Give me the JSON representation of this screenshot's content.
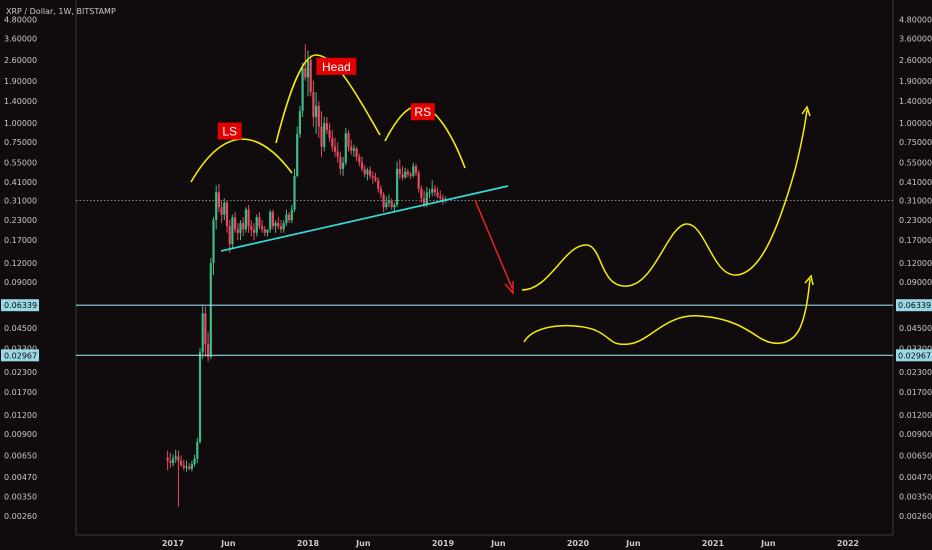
{
  "chart_data": {
    "type": "candlestick",
    "title": "XRP / Dollar, 1W, BITSTAMP",
    "y_scale": "log",
    "ylim": [
      0.0021,
      4.8
    ],
    "y_ticks": [
      "4.80000",
      "3.60000",
      "2.60000",
      "1.90000",
      "1.40000",
      "1.00000",
      "0.75000",
      "0.55000",
      "0.41000",
      "0.31000",
      "0.23000",
      "0.17000",
      "0.12000",
      "0.09000",
      "0.06339",
      "0.04500",
      "0.03300",
      "0.02967",
      "0.02300",
      "0.01700",
      "0.01200",
      "0.00900",
      "0.00650",
      "0.00470",
      "0.00350",
      "0.00260"
    ],
    "x_ticks": [
      {
        "label": "2017",
        "t": 2017.0
      },
      {
        "label": "Jun",
        "t": 2017.41
      },
      {
        "label": "2018",
        "t": 2018.0
      },
      {
        "label": "Jun",
        "t": 2018.41
      },
      {
        "label": "2019",
        "t": 2019.0
      },
      {
        "label": "Jun",
        "t": 2019.41
      },
      {
        "label": "2020",
        "t": 2020.0
      },
      {
        "label": "Jun",
        "t": 2020.41
      },
      {
        "label": "2021",
        "t": 2021.0
      },
      {
        "label": "Jun",
        "t": 2021.41
      },
      {
        "label": "2022",
        "t": 2022.0
      }
    ],
    "current_price": 0.31,
    "levels": [
      {
        "value": 0.06339,
        "label": "0.06339"
      },
      {
        "value": 0.02967,
        "label": "0.02967"
      }
    ],
    "pattern_labels": [
      {
        "text": "LS",
        "t": 2017.42,
        "y": 0.88
      },
      {
        "text": "Head",
        "t": 2018.21,
        "y": 2.35
      },
      {
        "text": "RS",
        "t": 2018.85,
        "y": 1.18
      }
    ],
    "candles": [
      [
        2016.96,
        0.0063,
        0.007,
        0.0052,
        0.006
      ],
      [
        2016.98,
        0.006,
        0.0068,
        0.0054,
        0.0058
      ],
      [
        2017.0,
        0.0058,
        0.0066,
        0.0055,
        0.0062
      ],
      [
        2017.02,
        0.0062,
        0.0071,
        0.0058,
        0.0064
      ],
      [
        2017.04,
        0.0064,
        0.007,
        0.003,
        0.006
      ],
      [
        2017.06,
        0.006,
        0.0065,
        0.0055,
        0.0056
      ],
      [
        2017.08,
        0.0056,
        0.0061,
        0.0052,
        0.0054
      ],
      [
        2017.1,
        0.0054,
        0.006,
        0.0051,
        0.0055
      ],
      [
        2017.12,
        0.0055,
        0.0058,
        0.0052,
        0.0053
      ],
      [
        2017.14,
        0.0053,
        0.006,
        0.0051,
        0.0057
      ],
      [
        2017.16,
        0.0057,
        0.0066,
        0.0055,
        0.0062
      ],
      [
        2017.18,
        0.0062,
        0.0085,
        0.0058,
        0.008
      ],
      [
        2017.2,
        0.008,
        0.033,
        0.0078,
        0.031
      ],
      [
        2017.22,
        0.031,
        0.064,
        0.028,
        0.056
      ],
      [
        2017.24,
        0.056,
        0.062,
        0.029,
        0.035
      ],
      [
        2017.26,
        0.035,
        0.042,
        0.027,
        0.029
      ],
      [
        2017.28,
        0.029,
        0.13,
        0.028,
        0.12
      ],
      [
        2017.3,
        0.12,
        0.24,
        0.1,
        0.23
      ],
      [
        2017.32,
        0.23,
        0.39,
        0.2,
        0.35
      ],
      [
        2017.34,
        0.35,
        0.4,
        0.26,
        0.28
      ],
      [
        2017.36,
        0.28,
        0.31,
        0.22,
        0.25
      ],
      [
        2017.38,
        0.25,
        0.32,
        0.23,
        0.3
      ],
      [
        2017.4,
        0.3,
        0.31,
        0.19,
        0.21
      ],
      [
        2017.42,
        0.21,
        0.23,
        0.14,
        0.16
      ],
      [
        2017.44,
        0.16,
        0.25,
        0.15,
        0.24
      ],
      [
        2017.46,
        0.24,
        0.26,
        0.19,
        0.2
      ],
      [
        2017.48,
        0.2,
        0.22,
        0.17,
        0.19
      ],
      [
        2017.5,
        0.19,
        0.23,
        0.17,
        0.22
      ],
      [
        2017.52,
        0.22,
        0.24,
        0.18,
        0.2
      ],
      [
        2017.54,
        0.2,
        0.28,
        0.19,
        0.27
      ],
      [
        2017.56,
        0.27,
        0.29,
        0.19,
        0.21
      ],
      [
        2017.58,
        0.21,
        0.23,
        0.18,
        0.2
      ],
      [
        2017.6,
        0.2,
        0.22,
        0.17,
        0.19
      ],
      [
        2017.62,
        0.19,
        0.25,
        0.18,
        0.24
      ],
      [
        2017.64,
        0.24,
        0.26,
        0.2,
        0.21
      ],
      [
        2017.66,
        0.21,
        0.23,
        0.19,
        0.2
      ],
      [
        2017.68,
        0.2,
        0.21,
        0.18,
        0.19
      ],
      [
        2017.7,
        0.19,
        0.2,
        0.18,
        0.2
      ],
      [
        2017.72,
        0.2,
        0.27,
        0.19,
        0.26
      ],
      [
        2017.74,
        0.26,
        0.27,
        0.2,
        0.21
      ],
      [
        2017.76,
        0.21,
        0.23,
        0.19,
        0.22
      ],
      [
        2017.78,
        0.22,
        0.24,
        0.2,
        0.21
      ],
      [
        2017.8,
        0.21,
        0.23,
        0.19,
        0.2
      ],
      [
        2017.82,
        0.2,
        0.23,
        0.19,
        0.22
      ],
      [
        2017.84,
        0.22,
        0.27,
        0.21,
        0.25
      ],
      [
        2017.86,
        0.25,
        0.26,
        0.22,
        0.23
      ],
      [
        2017.88,
        0.23,
        0.29,
        0.22,
        0.27
      ],
      [
        2017.9,
        0.27,
        0.5,
        0.26,
        0.45
      ],
      [
        2017.92,
        0.45,
        0.95,
        0.44,
        0.85
      ],
      [
        2017.94,
        0.85,
        1.3,
        0.8,
        1.2
      ],
      [
        2017.96,
        1.2,
        2.5,
        1.1,
        2.3
      ],
      [
        2017.98,
        2.3,
        3.3,
        1.9,
        2.0
      ],
      [
        2018.0,
        2.0,
        3.0,
        1.5,
        2.6
      ],
      [
        2018.02,
        2.6,
        2.8,
        1.5,
        1.6
      ],
      [
        2018.04,
        1.6,
        1.9,
        0.95,
        1.1
      ],
      [
        2018.06,
        1.1,
        1.6,
        0.85,
        1.3
      ],
      [
        2018.08,
        1.3,
        1.4,
        0.8,
        0.95
      ],
      [
        2018.1,
        0.95,
        1.2,
        0.6,
        0.7
      ],
      [
        2018.12,
        0.7,
        1.1,
        0.65,
        1.0
      ],
      [
        2018.14,
        1.0,
        1.1,
        0.85,
        0.9
      ],
      [
        2018.16,
        0.9,
        1.0,
        0.75,
        0.8
      ],
      [
        2018.18,
        0.8,
        0.9,
        0.65,
        0.7
      ],
      [
        2018.2,
        0.7,
        0.8,
        0.6,
        0.65
      ],
      [
        2018.22,
        0.65,
        0.75,
        0.55,
        0.6
      ],
      [
        2018.24,
        0.6,
        0.65,
        0.46,
        0.5
      ],
      [
        2018.26,
        0.5,
        0.6,
        0.45,
        0.55
      ],
      [
        2018.28,
        0.55,
        0.93,
        0.53,
        0.86
      ],
      [
        2018.3,
        0.86,
        0.9,
        0.65,
        0.7
      ],
      [
        2018.32,
        0.7,
        0.78,
        0.62,
        0.66
      ],
      [
        2018.34,
        0.66,
        0.72,
        0.6,
        0.68
      ],
      [
        2018.36,
        0.68,
        0.7,
        0.56,
        0.6
      ],
      [
        2018.38,
        0.6,
        0.63,
        0.52,
        0.55
      ],
      [
        2018.4,
        0.55,
        0.6,
        0.48,
        0.5
      ],
      [
        2018.42,
        0.5,
        0.53,
        0.44,
        0.46
      ],
      [
        2018.44,
        0.46,
        0.51,
        0.42,
        0.49
      ],
      [
        2018.46,
        0.49,
        0.52,
        0.43,
        0.45
      ],
      [
        2018.48,
        0.45,
        0.48,
        0.4,
        0.44
      ],
      [
        2018.5,
        0.44,
        0.47,
        0.41,
        0.42
      ],
      [
        2018.52,
        0.42,
        0.44,
        0.35,
        0.37
      ],
      [
        2018.54,
        0.37,
        0.39,
        0.32,
        0.34
      ],
      [
        2018.56,
        0.34,
        0.35,
        0.26,
        0.28
      ],
      [
        2018.58,
        0.28,
        0.33,
        0.27,
        0.3
      ],
      [
        2018.6,
        0.3,
        0.34,
        0.28,
        0.31
      ],
      [
        2018.62,
        0.31,
        0.32,
        0.27,
        0.28
      ],
      [
        2018.64,
        0.28,
        0.3,
        0.26,
        0.29
      ],
      [
        2018.66,
        0.29,
        0.56,
        0.28,
        0.5
      ],
      [
        2018.68,
        0.5,
        0.58,
        0.43,
        0.46
      ],
      [
        2018.7,
        0.46,
        0.52,
        0.42,
        0.44
      ],
      [
        2018.72,
        0.44,
        0.51,
        0.43,
        0.48
      ],
      [
        2018.74,
        0.48,
        0.5,
        0.44,
        0.46
      ],
      [
        2018.76,
        0.46,
        0.48,
        0.43,
        0.45
      ],
      [
        2018.78,
        0.45,
        0.55,
        0.44,
        0.52
      ],
      [
        2018.8,
        0.52,
        0.54,
        0.45,
        0.47
      ],
      [
        2018.82,
        0.47,
        0.49,
        0.35,
        0.37
      ],
      [
        2018.84,
        0.37,
        0.39,
        0.3,
        0.32
      ],
      [
        2018.86,
        0.32,
        0.36,
        0.28,
        0.29
      ],
      [
        2018.88,
        0.29,
        0.38,
        0.28,
        0.35
      ],
      [
        2018.9,
        0.35,
        0.37,
        0.32,
        0.35
      ],
      [
        2018.92,
        0.35,
        0.42,
        0.33,
        0.37
      ],
      [
        2018.94,
        0.37,
        0.39,
        0.33,
        0.35
      ],
      [
        2018.96,
        0.35,
        0.38,
        0.32,
        0.33
      ],
      [
        2018.98,
        0.33,
        0.36,
        0.31,
        0.32
      ],
      [
        2019.0,
        0.32,
        0.34,
        0.29,
        0.31
      ],
      [
        2019.02,
        0.31,
        0.33,
        0.3,
        0.315
      ]
    ]
  }
}
